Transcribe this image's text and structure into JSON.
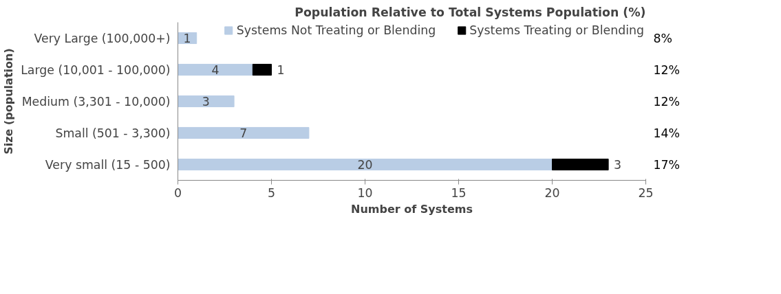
{
  "chart_data": {
    "type": "bar",
    "orientation": "horizontal",
    "stacked": true,
    "categories": [
      "Very Large (100,000+)",
      "Large (10,001 - 100,000)",
      "Medium (3,301 - 10,000)",
      "Small (501 - 3,300)",
      "Very small (15 - 500)"
    ],
    "series": [
      {
        "name": "Systems Not Treating or Blending",
        "color": "#b9cde5",
        "values": [
          1,
          4,
          3,
          7,
          20
        ]
      },
      {
        "name": "Systems Treating or Blending",
        "color": "#000000",
        "values": [
          null,
          1,
          null,
          null,
          3
        ]
      }
    ],
    "xlabel": "Number of Systems",
    "ylabel": "Size (population)",
    "xlim": [
      0,
      25
    ],
    "xticks": [
      0,
      5,
      10,
      15,
      20,
      25
    ],
    "grid": false,
    "legend": "top right",
    "data_labels": true,
    "annotations": [
      "Population Relative to Total Systems Population (%)",
      "8%",
      "12%",
      "12%",
      "14%",
      "17%"
    ]
  }
}
